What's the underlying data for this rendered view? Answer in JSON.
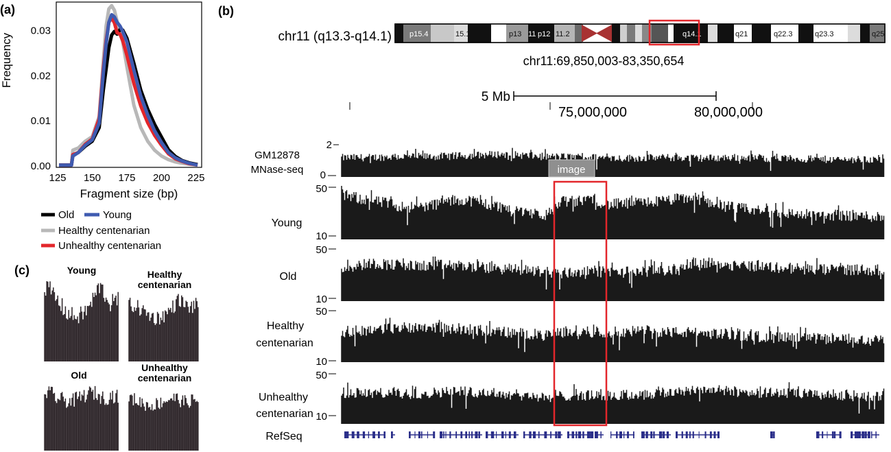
{
  "panel_labels": {
    "a": "(a)",
    "b": "(b)",
    "c": "(c)"
  },
  "colors": {
    "old": "#000000",
    "young": "#3f5bb0",
    "healthy": "#b8b8b8",
    "unhealthy": "#e3262b",
    "highlight": "#e3262b",
    "refseq": "#2b2f8a",
    "track": "#1a1a1a"
  },
  "chart_data": [
    {
      "type": "line",
      "panel": "(a)",
      "xlabel": "Fragment size (bp)",
      "ylabel": "Frequency",
      "xlim": [
        125,
        228
      ],
      "ylim": [
        0,
        0.036
      ],
      "xticks": [
        "125",
        "150",
        "175",
        "200",
        "225"
      ],
      "yticks": [
        "0.00",
        "0.01",
        "0.02",
        "0.03"
      ],
      "legend_position": "bottom",
      "series": [
        {
          "name": "Healthy centenarian",
          "color": "#b8b8b8",
          "x": [
            126,
            133,
            135,
            136,
            140,
            145,
            150,
            155,
            158,
            160,
            162,
            164,
            166,
            168,
            170,
            172,
            175,
            180,
            185,
            190,
            195,
            200,
            205,
            210,
            215,
            220,
            226
          ],
          "y": [
            0.0002,
            0.0002,
            0.0003,
            0.0035,
            0.004,
            0.0055,
            0.0065,
            0.011,
            0.0232,
            0.031,
            0.0348,
            0.0355,
            0.0345,
            0.032,
            0.0295,
            0.0275,
            0.022,
            0.0135,
            0.0085,
            0.0055,
            0.0035,
            0.0022,
            0.0014,
            0.0009,
            0.0006,
            0.0004,
            0.0002
          ]
        },
        {
          "name": "Old",
          "color": "#000000",
          "x": [
            126,
            133,
            135,
            136,
            140,
            145,
            150,
            155,
            158,
            160,
            162,
            164,
            166,
            168,
            170,
            172,
            175,
            180,
            185,
            190,
            195,
            200,
            205,
            210,
            215,
            220,
            226
          ],
          "y": [
            0.0002,
            0.0002,
            0.0002,
            0.0024,
            0.003,
            0.0044,
            0.0055,
            0.0085,
            0.0168,
            0.0215,
            0.0262,
            0.029,
            0.0298,
            0.0292,
            0.0302,
            0.0301,
            0.0283,
            0.0228,
            0.0168,
            0.0126,
            0.0092,
            0.0064,
            0.0036,
            0.0021,
            0.0012,
            0.0007,
            0.0003
          ]
        },
        {
          "name": "Unhealthy centenarian",
          "color": "#e3262b",
          "x": [
            126,
            133,
            135,
            136,
            140,
            145,
            150,
            155,
            158,
            160,
            162,
            164,
            166,
            168,
            170,
            172,
            175,
            180,
            185,
            190,
            195,
            200,
            205,
            210,
            215,
            220,
            226
          ],
          "y": [
            0.0002,
            0.0002,
            0.0002,
            0.0025,
            0.003,
            0.0048,
            0.006,
            0.0105,
            0.0215,
            0.0277,
            0.0318,
            0.0328,
            0.0317,
            0.0295,
            0.0292,
            0.0278,
            0.0245,
            0.0183,
            0.0133,
            0.0096,
            0.0068,
            0.0046,
            0.0027,
            0.0016,
            0.001,
            0.0005,
            0.0002
          ]
        },
        {
          "name": "Young",
          "color": "#3f5bb0",
          "x": [
            126,
            133,
            135,
            136,
            140,
            145,
            150,
            155,
            158,
            160,
            162,
            164,
            166,
            168,
            170,
            172,
            175,
            180,
            185,
            190,
            195,
            200,
            205,
            210,
            215,
            220,
            226
          ],
          "y": [
            0.0002,
            0.0002,
            0.0002,
            0.0022,
            0.003,
            0.0046,
            0.0058,
            0.0095,
            0.0205,
            0.027,
            0.0318,
            0.0335,
            0.033,
            0.0318,
            0.031,
            0.0298,
            0.0275,
            0.0213,
            0.0155,
            0.0113,
            0.0078,
            0.0052,
            0.003,
            0.0018,
            0.0011,
            0.0006,
            0.0002
          ]
        }
      ]
    },
    {
      "type": "bar",
      "panel": "(b)",
      "ideogram": {
        "label": "chr11 (q13.3-q14.1)",
        "bands": [
          "p15.4",
          "15.1",
          "p13",
          "11",
          "p12",
          "11.2",
          "q14.1",
          "q21",
          "q22.3",
          "q23.3",
          "q25"
        ]
      },
      "coordinates": "chr11:69,850,003-83,350,654",
      "scale_label": "5 Mb",
      "x_ticks": [
        "75,000,000",
        "80,000,000"
      ],
      "highlight_tag": "image",
      "tracks": [
        {
          "label_line1": "GM12878",
          "label_line2": "MNase-seq",
          "ymax": "2",
          "ymin": "0",
          "profile": [
            0.55,
            0.55,
            0.56,
            0.57,
            0.58,
            0.58,
            0.58,
            0.59,
            0.6,
            0.62,
            0.64,
            0.65,
            0.63,
            0.6,
            0.58,
            0.58,
            0.57,
            0.56,
            0.55,
            0.54,
            0.54,
            0.55,
            0.55,
            0.55,
            0.54,
            0.54,
            0.55,
            0.56,
            0.55,
            0.53,
            0.53,
            0.52,
            0.5,
            0.5,
            0.5,
            0.5,
            0.5,
            0.48
          ]
        },
        {
          "label_line1": "Young",
          "label_line2": "",
          "ymax": "50",
          "ymin": "10",
          "profile": [
            0.83,
            0.78,
            0.72,
            0.68,
            0.62,
            0.6,
            0.63,
            0.7,
            0.74,
            0.72,
            0.65,
            0.6,
            0.55,
            0.5,
            0.45,
            0.72,
            0.7,
            0.78,
            0.65,
            0.66,
            0.68,
            0.7,
            0.72,
            0.76,
            0.78,
            0.7,
            0.63,
            0.58,
            0.55,
            0.52,
            0.5,
            0.47,
            0.46,
            0.45,
            0.46,
            0.44,
            0.43,
            0.42
          ]
        },
        {
          "label_line1": "Old",
          "label_line2": "",
          "ymax": "50",
          "ymin": "10",
          "profile": [
            0.62,
            0.67,
            0.72,
            0.7,
            0.68,
            0.66,
            0.67,
            0.68,
            0.67,
            0.65,
            0.63,
            0.61,
            0.6,
            0.58,
            0.55,
            0.53,
            0.55,
            0.57,
            0.55,
            0.55,
            0.56,
            0.57,
            0.58,
            0.6,
            0.75,
            0.72,
            0.7,
            0.68,
            0.67,
            0.65,
            0.63,
            0.62,
            0.6,
            0.59,
            0.6,
            0.6,
            0.59,
            0.58
          ]
        },
        {
          "label_line1": "Healthy",
          "label_line2": "centenarian",
          "ymax": "50",
          "ymin": "10",
          "profile": [
            0.58,
            0.6,
            0.62,
            0.64,
            0.66,
            0.68,
            0.68,
            0.66,
            0.64,
            0.62,
            0.6,
            0.58,
            0.55,
            0.54,
            0.5,
            0.58,
            0.6,
            0.58,
            0.57,
            0.58,
            0.59,
            0.6,
            0.58,
            0.57,
            0.57,
            0.55,
            0.54,
            0.52,
            0.5,
            0.48,
            0.47,
            0.46,
            0.45,
            0.45,
            0.44,
            0.44,
            0.43,
            0.42
          ]
        },
        {
          "label_line1": "Unhealthy",
          "label_line2": "centenarian",
          "ymax": "50",
          "ymin": "10",
          "profile": [
            0.62,
            0.62,
            0.61,
            0.61,
            0.6,
            0.6,
            0.62,
            0.64,
            0.65,
            0.64,
            0.62,
            0.6,
            0.58,
            0.56,
            0.5,
            0.56,
            0.58,
            0.56,
            0.56,
            0.57,
            0.58,
            0.6,
            0.62,
            0.64,
            0.7,
            0.68,
            0.66,
            0.64,
            0.63,
            0.62,
            0.62,
            0.6,
            0.59,
            0.58,
            0.58,
            0.56,
            0.55,
            0.55
          ]
        }
      ],
      "refseq_label": "RefSeq"
    },
    {
      "type": "bar",
      "panel": "(c)",
      "panels": [
        {
          "title_line1": "Young",
          "title_line2": "",
          "profile": [
            0.72,
            0.7,
            0.66,
            0.6,
            0.55,
            0.5,
            0.46,
            0.44,
            0.43,
            0.44,
            0.46,
            0.5,
            0.56,
            0.64,
            0.72,
            0.68,
            0.6,
            0.55,
            0.58,
            0.6
          ]
        },
        {
          "title_line1": "Healthy",
          "title_line2": "centenarian",
          "profile": [
            0.62,
            0.62,
            0.6,
            0.58,
            0.55,
            0.52,
            0.5,
            0.48,
            0.48,
            0.5,
            0.52,
            0.56,
            0.6,
            0.66,
            0.68,
            0.62,
            0.6,
            0.6,
            0.62,
            0.6
          ]
        },
        {
          "title_line1": "Old",
          "title_line2": "",
          "profile": [
            0.66,
            0.65,
            0.64,
            0.6,
            0.58,
            0.58,
            0.56,
            0.56,
            0.58,
            0.6,
            0.62,
            0.64,
            0.66,
            0.65,
            0.62,
            0.6,
            0.6,
            0.62,
            0.62,
            0.6
          ]
        },
        {
          "title_line1": "Unhealthy",
          "title_line2": "centenarian",
          "profile": [
            0.64,
            0.64,
            0.62,
            0.6,
            0.58,
            0.56,
            0.56,
            0.57,
            0.58,
            0.6,
            0.62,
            0.64,
            0.65,
            0.64,
            0.62,
            0.6,
            0.6,
            0.62,
            0.62,
            0.6
          ]
        }
      ]
    }
  ]
}
